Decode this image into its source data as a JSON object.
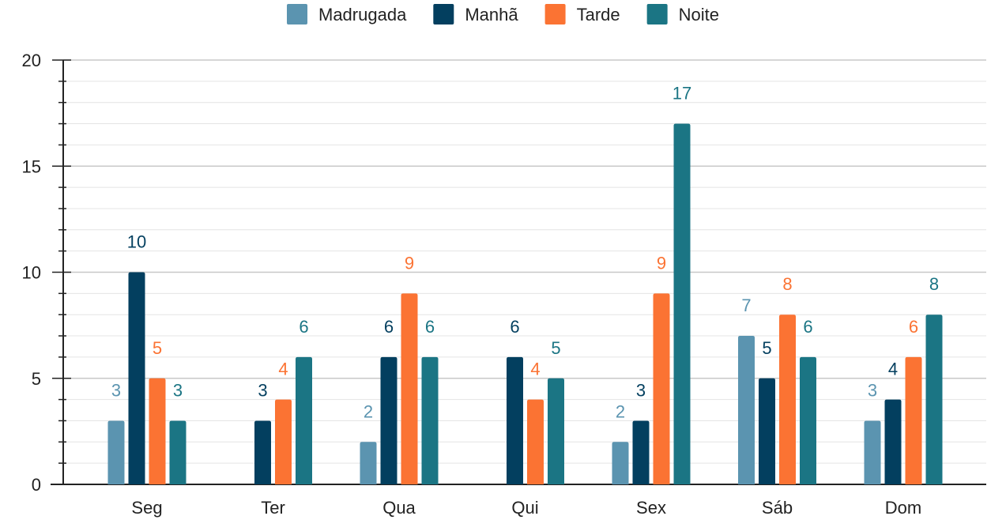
{
  "chart_data": {
    "type": "bar",
    "categories": [
      "Seg",
      "Ter",
      "Qua",
      "Qui",
      "Sex",
      "Sáb",
      "Dom"
    ],
    "series": [
      {
        "name": "Madrugada",
        "color": "#5b94b0",
        "values": [
          3,
          0,
          2,
          0,
          2,
          7,
          3
        ]
      },
      {
        "name": "Manhã",
        "color": "#033f5f",
        "values": [
          10,
          3,
          6,
          6,
          3,
          5,
          4
        ]
      },
      {
        "name": "Tarde",
        "color": "#fb7333",
        "values": [
          5,
          4,
          9,
          4,
          9,
          8,
          6
        ]
      },
      {
        "name": "Noite",
        "color": "#1b7584",
        "values": [
          3,
          6,
          6,
          5,
          17,
          6,
          8
        ]
      }
    ],
    "ylim": [
      0,
      20
    ],
    "yticks": [
      "0",
      "5",
      "10",
      "15",
      "20"
    ],
    "minor_grid_step": 1,
    "legend": "top-center",
    "grid": true,
    "data_labels": true
  }
}
